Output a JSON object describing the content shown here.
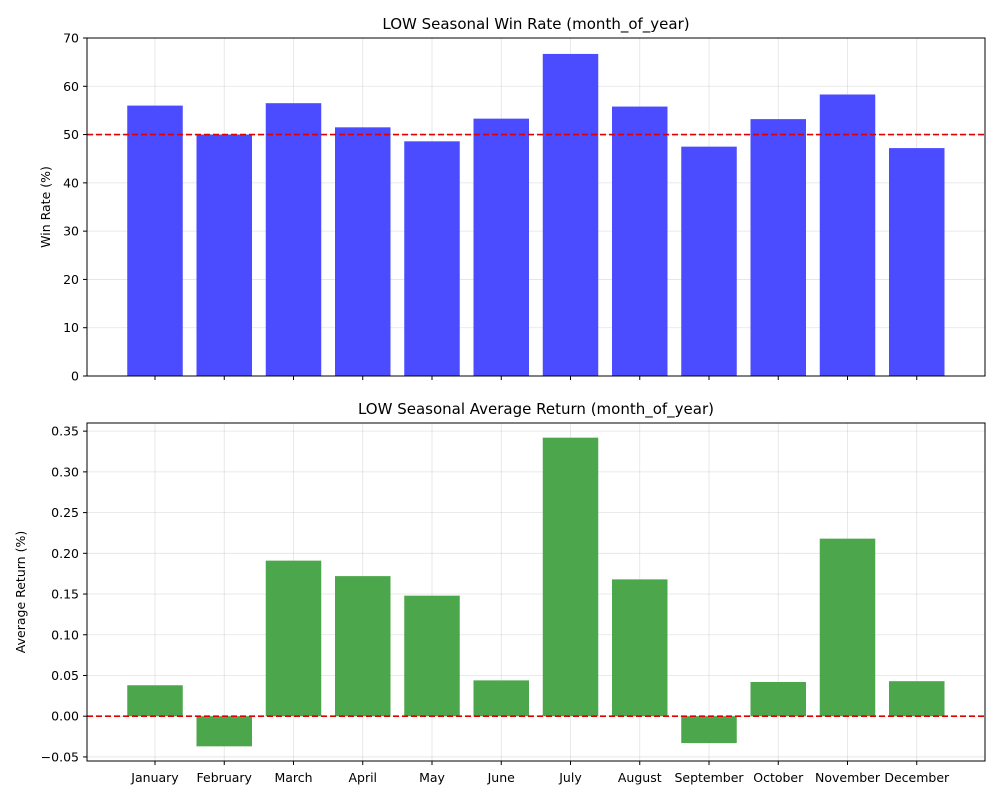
{
  "chart_data": [
    {
      "type": "bar",
      "title": "LOW Seasonal Win Rate (month_of_year)",
      "xlabel": "",
      "ylabel": "Win Rate (%)",
      "categories": [
        "January",
        "February",
        "March",
        "April",
        "May",
        "June",
        "July",
        "August",
        "September",
        "October",
        "November",
        "December"
      ],
      "values": [
        56.0,
        50.0,
        56.5,
        51.5,
        48.6,
        53.3,
        66.7,
        55.8,
        47.5,
        53.2,
        58.3,
        47.2
      ],
      "ylim": [
        0,
        70
      ],
      "yticks": [
        0,
        10,
        20,
        30,
        40,
        50,
        60,
        70
      ],
      "ytick_labels": [
        "0",
        "10",
        "20",
        "30",
        "40",
        "50",
        "60",
        "70"
      ],
      "reference_line": 50,
      "bar_color": "#4b4bff",
      "reference_color": "#e00000",
      "grid": true
    },
    {
      "type": "bar",
      "title": "LOW Seasonal Average Return (month_of_year)",
      "xlabel": "",
      "ylabel": "Average Return (%)",
      "categories": [
        "January",
        "February",
        "March",
        "April",
        "May",
        "June",
        "July",
        "August",
        "September",
        "October",
        "November",
        "December"
      ],
      "values": [
        0.038,
        -0.037,
        0.191,
        0.172,
        0.148,
        0.044,
        0.342,
        0.168,
        -0.033,
        0.042,
        0.218,
        0.043
      ],
      "ylim": [
        -0.055,
        0.36
      ],
      "yticks": [
        -0.05,
        0,
        0.05,
        0.1,
        0.15,
        0.2,
        0.25,
        0.3,
        0.35
      ],
      "ytick_labels": [
        "−0.05",
        "0.00",
        "0.05",
        "0.10",
        "0.15",
        "0.20",
        "0.25",
        "0.30",
        "0.35"
      ],
      "reference_line": 0,
      "bar_color": "#4ca64c",
      "reference_color": "#e00000",
      "grid": true
    }
  ]
}
